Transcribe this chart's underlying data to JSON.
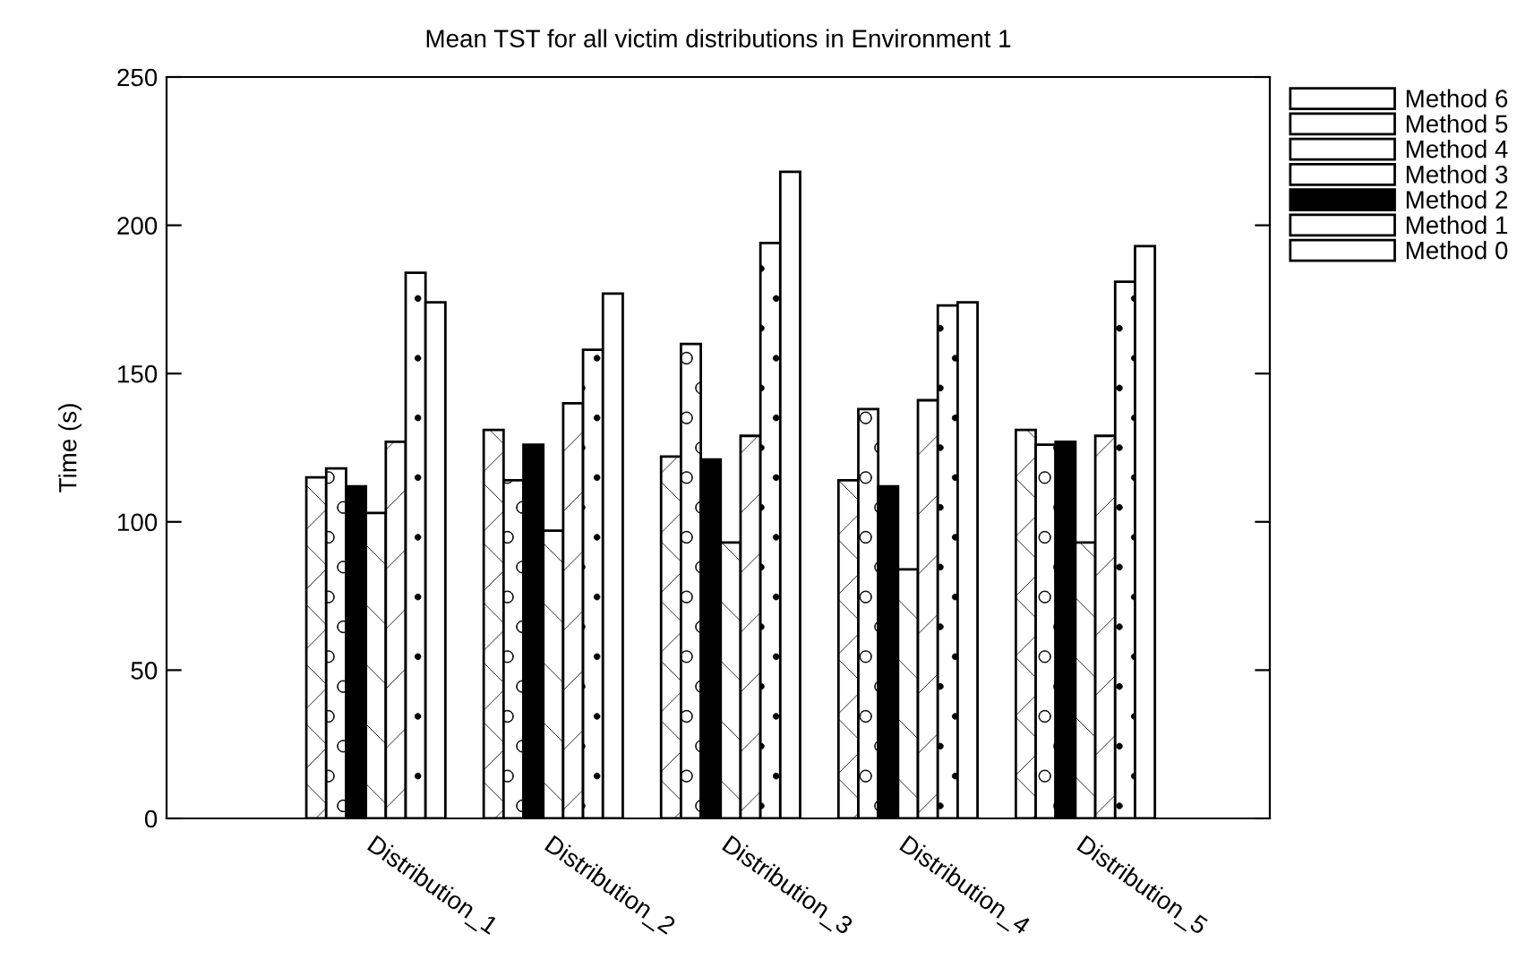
{
  "chart_data": {
    "type": "bar",
    "title": "Mean TST for all victim distributions in Environment 1",
    "ylabel": "Time (s)",
    "categories": [
      "Distribution_1",
      "Distribution_2",
      "Distribution_3",
      "Distribution_4",
      "Distribution_5"
    ],
    "series": [
      {
        "name": "Method 0",
        "color": "#ffffff",
        "values": [
          115,
          131,
          122,
          114,
          131
        ]
      },
      {
        "name": "Method 1",
        "color": "#ffffff",
        "values": [
          118,
          114,
          160,
          138,
          126
        ]
      },
      {
        "name": "Method 2",
        "color": "#000000",
        "values": [
          112,
          126,
          121,
          112,
          127
        ]
      },
      {
        "name": "Method 3",
        "color": "#ffffff",
        "values": [
          103,
          97,
          93,
          84,
          93
        ]
      },
      {
        "name": "Method 4",
        "color": "#ffffff",
        "values": [
          127,
          140,
          129,
          141,
          129
        ]
      },
      {
        "name": "Method 5",
        "color": "#ffffff",
        "values": [
          184,
          158,
          194,
          173,
          181
        ]
      },
      {
        "name": "Method 6",
        "color": "#ffffff",
        "values": [
          174,
          177,
          218,
          174,
          193
        ]
      }
    ],
    "ylim": [
      0,
      250
    ],
    "yticks": [
      0,
      50,
      100,
      150,
      200,
      250
    ],
    "grid": false,
    "legend": "top right"
  }
}
